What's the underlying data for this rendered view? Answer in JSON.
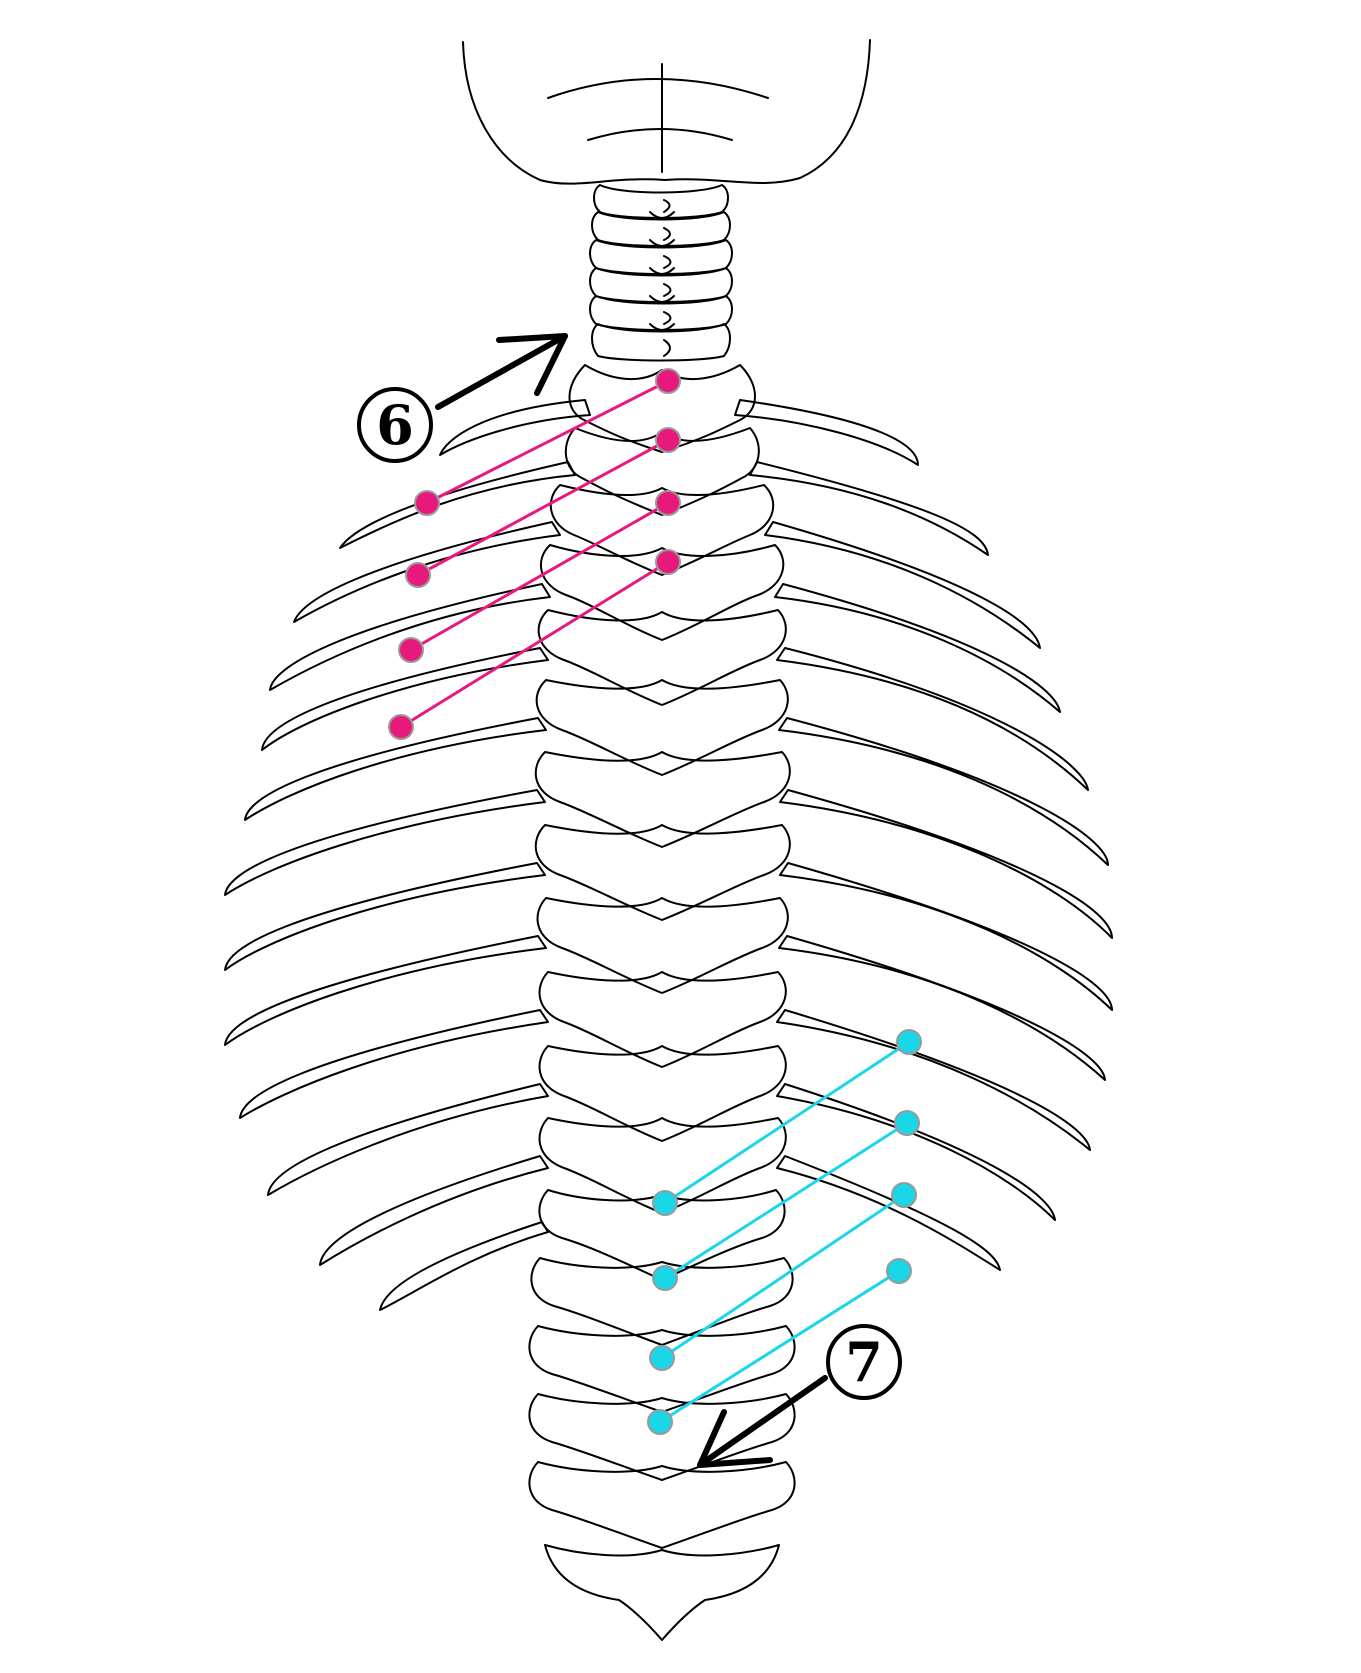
{
  "markers": {
    "upper": {
      "label": "6"
    },
    "lower": {
      "label": "7"
    }
  },
  "colors": {
    "upper_lines": "#e8197d",
    "lower_lines": "#1ad6e6",
    "outline": "#000000",
    "background": "#ffffff"
  }
}
